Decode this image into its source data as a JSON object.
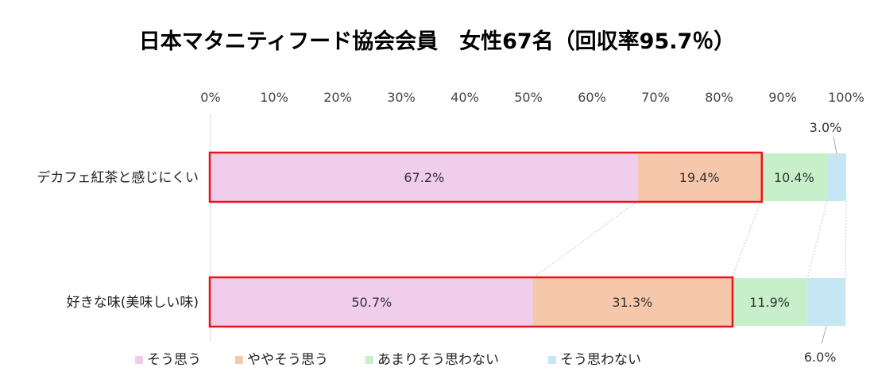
{
  "chart_data": {
    "type": "bar",
    "orientation": "horizontal-stacked-100",
    "title": "日本マタニティフード協会会員　女性67名（回収率95.7％）",
    "xaxis": {
      "ticks": [
        "0%",
        "10%",
        "20%",
        "30%",
        "40%",
        "50%",
        "60%",
        "70%",
        "80%",
        "90%",
        "100%"
      ],
      "range": [
        0,
        100
      ],
      "position": "top"
    },
    "categories": [
      "デカフェ紅茶と感じにくい",
      "好きな味(美味しい味)"
    ],
    "series": [
      {
        "name": "そう思う",
        "values": [
          67.2,
          50.7
        ],
        "labels": [
          "67.2%",
          "50.7%"
        ],
        "color": "#f0cdeb"
      },
      {
        "name": "ややそう思う",
        "values": [
          19.4,
          31.3
        ],
        "labels": [
          "19.4%",
          "31.3%"
        ],
        "color": "#f6c7aa"
      },
      {
        "name": "あまりそう思わない",
        "values": [
          10.4,
          11.9
        ],
        "labels": [
          "10.4%",
          "11.9%"
        ],
        "color": "#c7efc9"
      },
      {
        "name": "そう思わない",
        "values": [
          3.0,
          6.0
        ],
        "labels": [
          "3.0%",
          "6.0%"
        ],
        "color": "#c5e6f5"
      }
    ],
    "highlight_color": "#e8141b",
    "legend": {
      "position": "bottom"
    },
    "grid": false
  }
}
